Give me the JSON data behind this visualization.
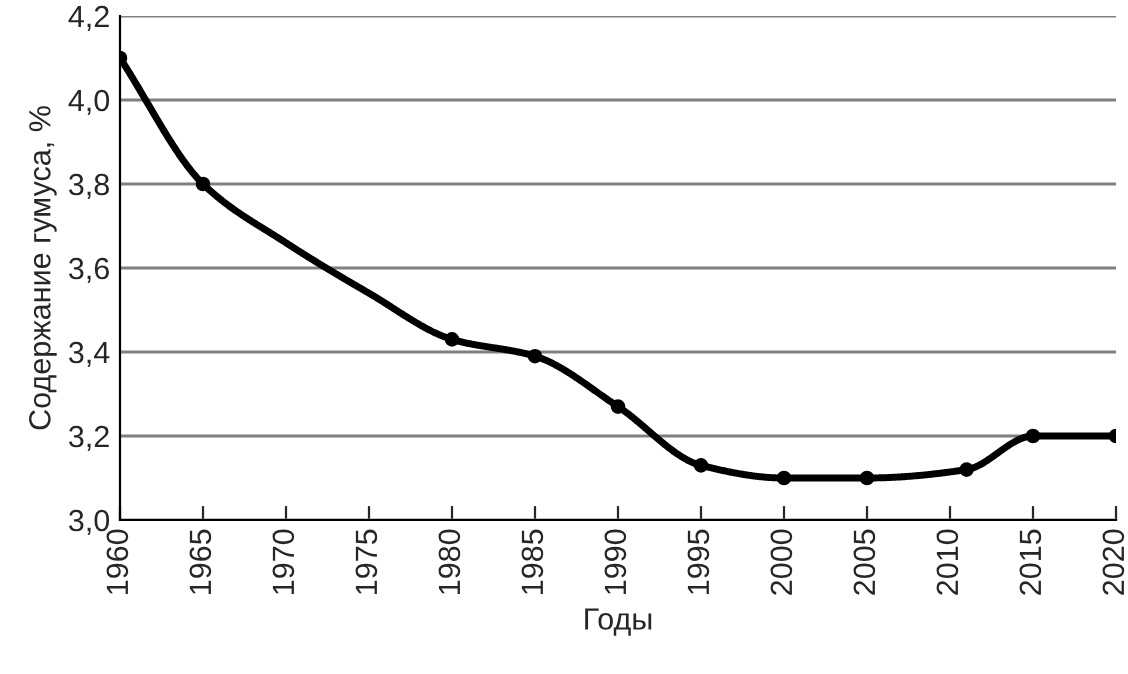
{
  "chart_data": {
    "type": "line",
    "xlabel": "Годы",
    "ylabel": "Содержание гумуса, %",
    "x": [
      1960,
      1965,
      1970,
      1975,
      1980,
      1985,
      1990,
      1995,
      2000,
      2005,
      2011,
      2015,
      2020
    ],
    "series": [
      {
        "color": "#000000",
        "marker": "none",
        "values": [
          4.1,
          3.8,
          3.66,
          3.54,
          3.43,
          3.39,
          3.27,
          3.13,
          3.1,
          3.1,
          3.12,
          3.2,
          3.2
        ]
      },
      {
        "type": "scatter",
        "color": "#000000",
        "x": [
          1960,
          1965,
          1980,
          1985,
          1990,
          1995,
          2000,
          2005,
          2011,
          2015,
          2020
        ],
        "values": [
          4.1,
          3.8,
          3.43,
          3.39,
          3.27,
          3.13,
          3.1,
          3.1,
          3.12,
          3.2,
          3.2
        ]
      }
    ],
    "xlim": [
      1960,
      2020
    ],
    "xticks": [
      1960,
      1965,
      1970,
      1975,
      1980,
      1985,
      1990,
      1995,
      2000,
      2005,
      2010,
      2015,
      2020
    ],
    "ylim": [
      3.0,
      4.2
    ],
    "yticks": [
      {
        "value": 3.0,
        "label": "3,0"
      },
      {
        "value": 3.2,
        "label": "3,2"
      },
      {
        "value": 3.4,
        "label": "3,4"
      },
      {
        "value": 3.6,
        "label": "3,6"
      },
      {
        "value": 3.8,
        "label": "3,8"
      },
      {
        "value": 4.0,
        "label": "4,0"
      },
      {
        "value": 4.2,
        "label": "4,2"
      }
    ],
    "grid": "y",
    "marker": "circle",
    "line_style": "solid",
    "legend": false
  }
}
